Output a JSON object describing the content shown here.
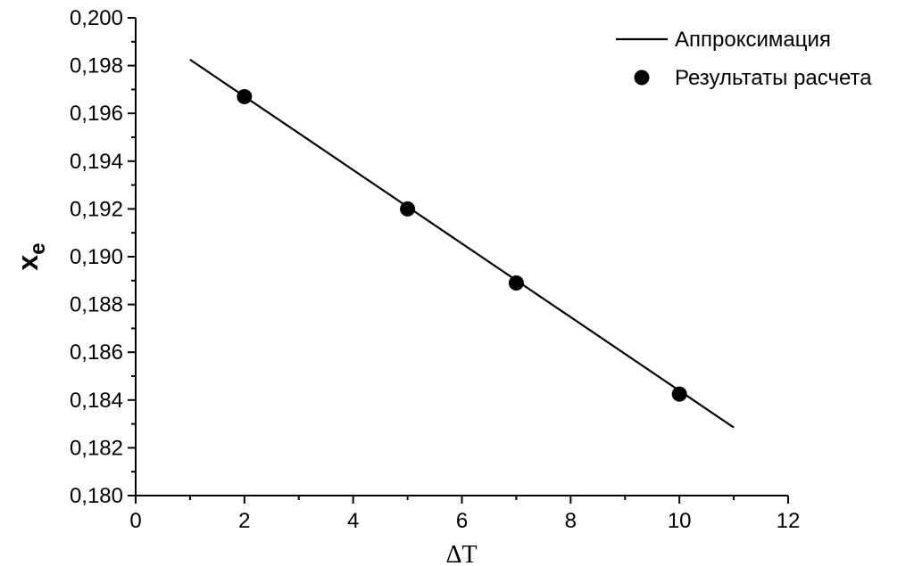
{
  "chart_data": {
    "type": "line",
    "xlabel_symbol": "ΔT",
    "ylabel_main": "x",
    "ylabel_sub": "e",
    "xlim": [
      0,
      12
    ],
    "ylim": [
      0.18,
      0.2
    ],
    "x_ticks": [
      {
        "value": 0,
        "label": "0"
      },
      {
        "value": 2,
        "label": "2"
      },
      {
        "value": 4,
        "label": "4"
      },
      {
        "value": 6,
        "label": "6"
      },
      {
        "value": 8,
        "label": "8"
      },
      {
        "value": 10,
        "label": "10"
      },
      {
        "value": 12,
        "label": "12"
      }
    ],
    "y_ticks": [
      {
        "value": 0.18,
        "label": "0,180"
      },
      {
        "value": 0.182,
        "label": "0,182"
      },
      {
        "value": 0.184,
        "label": "0,184"
      },
      {
        "value": 0.186,
        "label": "0,186"
      },
      {
        "value": 0.188,
        "label": "0,188"
      },
      {
        "value": 0.19,
        "label": "0,190"
      },
      {
        "value": 0.192,
        "label": "0,192"
      },
      {
        "value": 0.194,
        "label": "0,194"
      },
      {
        "value": 0.196,
        "label": "0,196"
      },
      {
        "value": 0.198,
        "label": "0,198"
      },
      {
        "value": 0.2,
        "label": "0,200"
      }
    ],
    "grid": false,
    "legend_position": "top-right",
    "series": [
      {
        "name": "Аппроксимация",
        "kind": "line",
        "color": "#000000",
        "x": [
          1,
          11
        ],
        "y": [
          0.19825,
          0.18285
        ]
      },
      {
        "name": "Результаты расчета",
        "kind": "scatter",
        "color": "#000000",
        "x": [
          2,
          5,
          7,
          10
        ],
        "y": [
          0.1967,
          0.192,
          0.1889,
          0.18425
        ]
      }
    ]
  }
}
